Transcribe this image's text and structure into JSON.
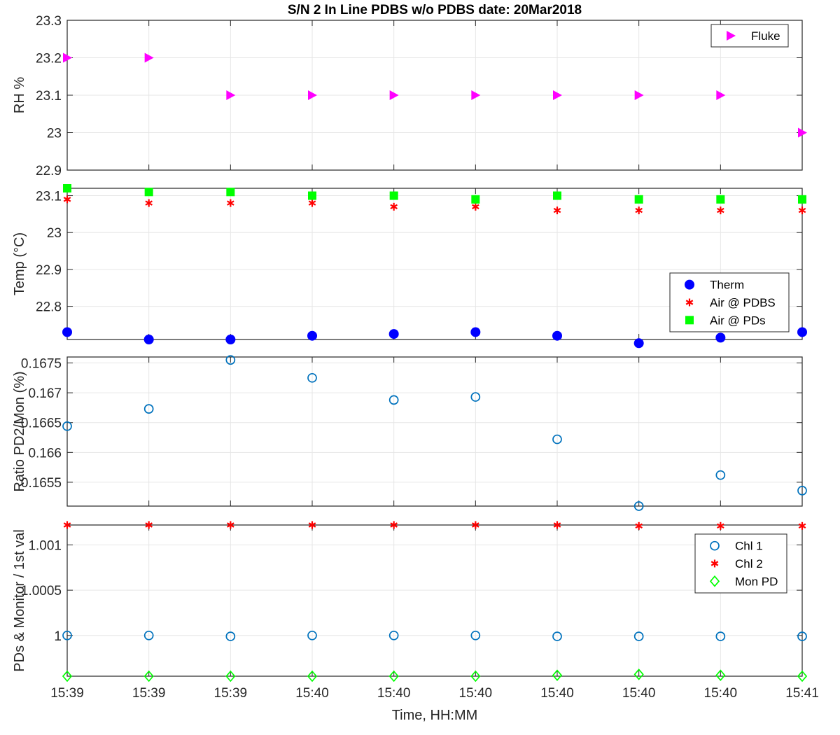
{
  "title": "S/N 2 In Line PDBS w/o PDBS date: 20Mar2018",
  "xlabel": "Time, HH:MM",
  "x_ticks": [
    "15:39",
    "15:39",
    "15:39",
    "15:40",
    "15:40",
    "15:40",
    "15:40",
    "15:40",
    "15:40",
    "15:41"
  ],
  "colors": {
    "magenta": "#ff00ff",
    "blue": "#0000ff",
    "red": "#ff0000",
    "green": "#00ff00",
    "matlab_blue": "#0072bd",
    "grid": "#e6e6e6",
    "axis": "#262626"
  },
  "chart_data": [
    {
      "type": "scatter",
      "ylabel": "RH %",
      "ylim": [
        22.9,
        23.3
      ],
      "yticks": [
        22.9,
        23,
        23.1,
        23.2,
        23.3
      ],
      "ytick_labels": [
        "22.9",
        "23",
        "23.1",
        "23.2",
        "23.3"
      ],
      "grid": true,
      "legend": "top-right",
      "series": [
        {
          "name": "Fluke",
          "marker": "triangle-right",
          "color": "#ff00ff",
          "values": [
            23.2,
            23.2,
            23.1,
            23.1,
            23.1,
            23.1,
            23.1,
            23.1,
            23.1,
            23.0
          ]
        }
      ]
    },
    {
      "type": "scatter",
      "ylabel": "Temp (°C)",
      "ylim": [
        22.71,
        23.12
      ],
      "yticks": [
        22.8,
        22.9,
        23,
        23.1
      ],
      "ytick_labels": [
        "22.8",
        "22.9",
        "23",
        "23.1"
      ],
      "grid": true,
      "legend": "bottom-right",
      "series": [
        {
          "name": "Therm",
          "marker": "filled-circle",
          "color": "#0000ff",
          "values": [
            22.73,
            22.71,
            22.71,
            22.72,
            22.725,
            22.73,
            22.72,
            22.7,
            22.715,
            22.73
          ]
        },
        {
          "name": "Air @ PDBS",
          "marker": "asterisk",
          "color": "#ff0000",
          "values": [
            23.09,
            23.08,
            23.08,
            23.08,
            23.07,
            23.07,
            23.06,
            23.06,
            23.06,
            23.06
          ]
        },
        {
          "name": "Air @ PDs",
          "marker": "filled-square",
          "color": "#00ff00",
          "values": [
            23.12,
            23.11,
            23.11,
            23.1,
            23.1,
            23.09,
            23.1,
            23.09,
            23.09,
            23.09
          ]
        }
      ]
    },
    {
      "type": "scatter",
      "ylabel": "Ratio PD2/Mon (%)",
      "ylim": [
        0.1651,
        0.1676
      ],
      "yticks": [
        0.1655,
        0.166,
        0.1665,
        0.167,
        0.1675
      ],
      "ytick_labels": [
        "0.1655",
        "0.166",
        "0.1665",
        "0.167",
        "0.1675"
      ],
      "grid": true,
      "legend": "none",
      "series": [
        {
          "name": "",
          "marker": "open-circle",
          "color": "#0072bd",
          "values": [
            0.16644,
            0.16673,
            0.16755,
            0.16725,
            0.16688,
            0.16693,
            0.16622,
            0.1651,
            0.16562,
            0.16536
          ]
        }
      ]
    },
    {
      "type": "scatter",
      "ylabel": "PDs & Monitor / 1st val",
      "ylim": [
        0.99955,
        1.00122
      ],
      "yticks": [
        1,
        1.0005,
        1.001
      ],
      "ytick_labels": [
        "1",
        "1.0005",
        "1.001"
      ],
      "grid": true,
      "legend": "top-right",
      "series": [
        {
          "name": "Chl 1",
          "marker": "open-circle",
          "color": "#0072bd",
          "values": [
            1.0,
            1.0,
            0.99999,
            1.0,
            1.0,
            1.0,
            0.99999,
            0.99999,
            0.99999,
            0.99999
          ]
        },
        {
          "name": "Chl 2",
          "marker": "asterisk",
          "color": "#ff0000",
          "values": [
            1.00122,
            1.00122,
            1.00122,
            1.00122,
            1.00122,
            1.00122,
            1.00122,
            1.00121,
            1.00121,
            1.00121
          ]
        },
        {
          "name": "Mon PD",
          "marker": "open-diamond",
          "color": "#00ff00",
          "values": [
            0.99955,
            0.99955,
            0.99955,
            0.99955,
            0.99955,
            0.99955,
            0.99956,
            0.99957,
            0.99956,
            0.99955
          ]
        }
      ]
    }
  ]
}
